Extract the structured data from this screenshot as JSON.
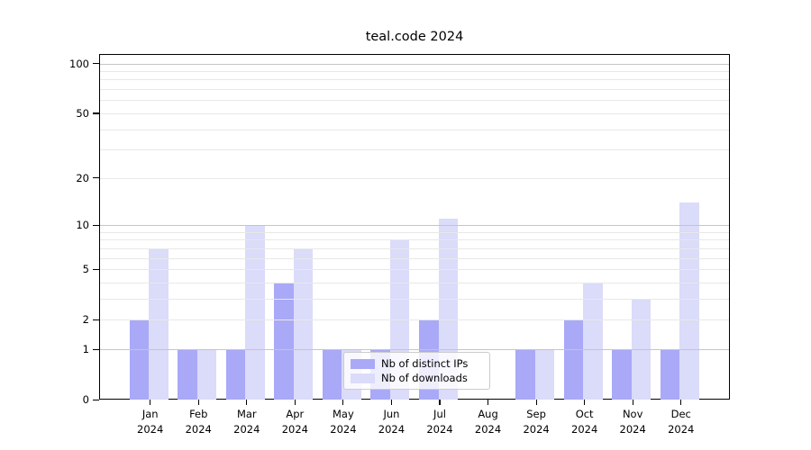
{
  "title": "teal.code 2024",
  "colors": {
    "ips_bar": "#a9a9f7",
    "downloads_bar": "#dbdbfa",
    "grid_major": "#c5c5c5",
    "grid_minor": "#e8e8e8",
    "spine": "#000000",
    "legend_border": "#cccccc"
  },
  "legend": {
    "position": "lower center"
  },
  "chart_data": {
    "type": "bar",
    "title": "teal.code 2024",
    "categories": [
      "Jan 2024",
      "Feb 2024",
      "Mar 2024",
      "Apr 2024",
      "May 2024",
      "Jun 2024",
      "Jul 2024",
      "Aug 2024",
      "Sep 2024",
      "Oct 2024",
      "Nov 2024",
      "Dec 2024"
    ],
    "series": [
      {
        "name": "Nb of distinct IPs",
        "values": [
          2,
          1,
          1,
          4,
          1,
          1,
          2,
          0,
          1,
          2,
          1,
          1
        ]
      },
      {
        "name": "Nb of downloads",
        "values": [
          7,
          1,
          10,
          7,
          1,
          8,
          11,
          0,
          1,
          4,
          3,
          14
        ]
      }
    ],
    "xlabel": "",
    "ylabel": "",
    "yscale": "log1p",
    "yticks": [
      100,
      50,
      20,
      10,
      5,
      2,
      1,
      0
    ],
    "minor_gridlines": [
      2,
      3,
      4,
      5,
      6,
      7,
      8,
      9,
      20,
      30,
      40,
      50,
      60,
      70,
      80,
      90
    ],
    "major_gridlines": [
      1,
      10,
      100
    ],
    "ylim": [
      0,
      115
    ],
    "grid": true,
    "legend_position": "lower center"
  }
}
